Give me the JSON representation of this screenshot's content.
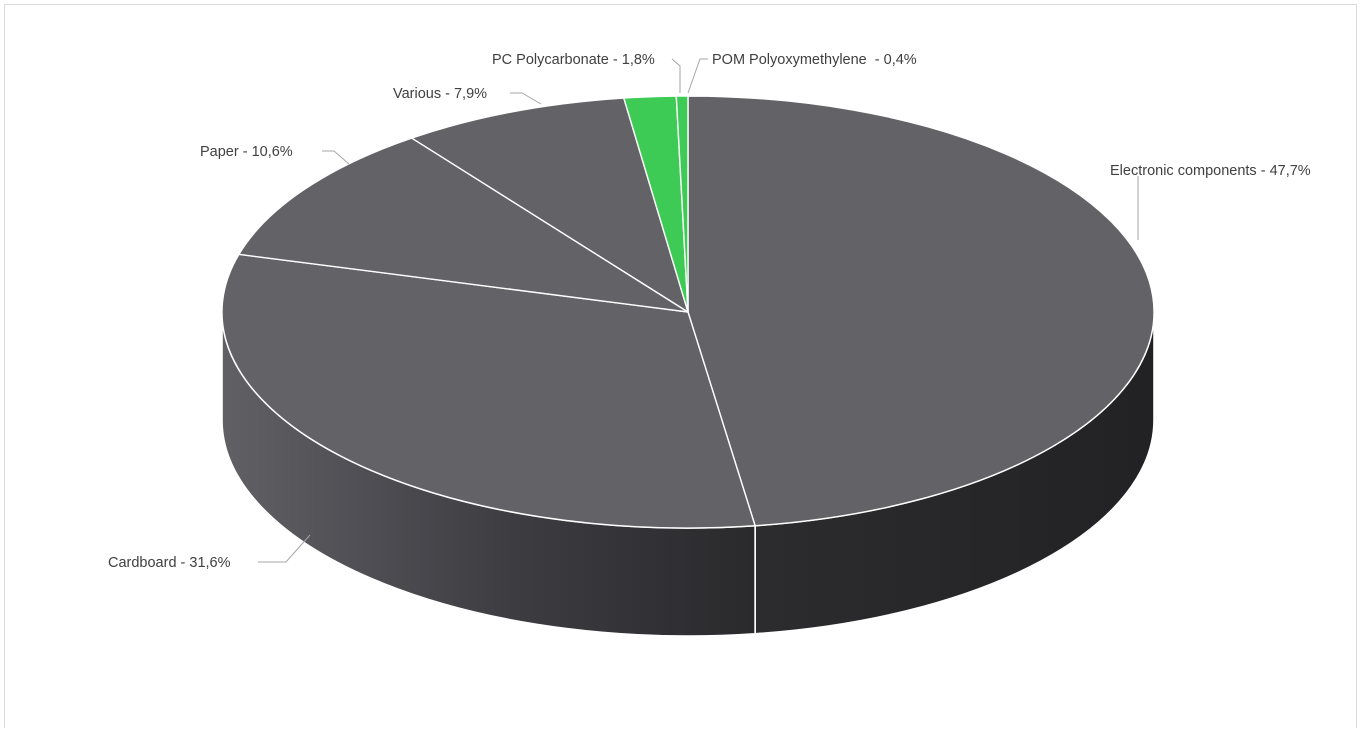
{
  "chart_data": {
    "type": "pie",
    "style": "3d",
    "title": "",
    "slices": [
      {
        "name": "Electronic components",
        "value": 47.7,
        "label": "Electronic components - 47,7%",
        "color": "#626267"
      },
      {
        "name": "Cardboard",
        "value": 31.6,
        "label": "Cardboard - 31,6%",
        "color": "#626267"
      },
      {
        "name": "Paper",
        "value": 10.6,
        "label": "Paper - 10,6%",
        "color": "#626267"
      },
      {
        "name": "Various",
        "value": 7.9,
        "label": "Various - 7,9%",
        "color": "#626267"
      },
      {
        "name": "PC Polycarbonate",
        "value": 1.8,
        "label": "PC Polycarbonate - 1,8%",
        "color": "#3ecb55"
      },
      {
        "name": "POM Polyoxymethylene",
        "value": 0.4,
        "label": "POM Polyoxymethylene  - 0,4%",
        "color": "#3ecb55"
      }
    ],
    "legend": "none",
    "data_labels": "outside with leader lines"
  }
}
